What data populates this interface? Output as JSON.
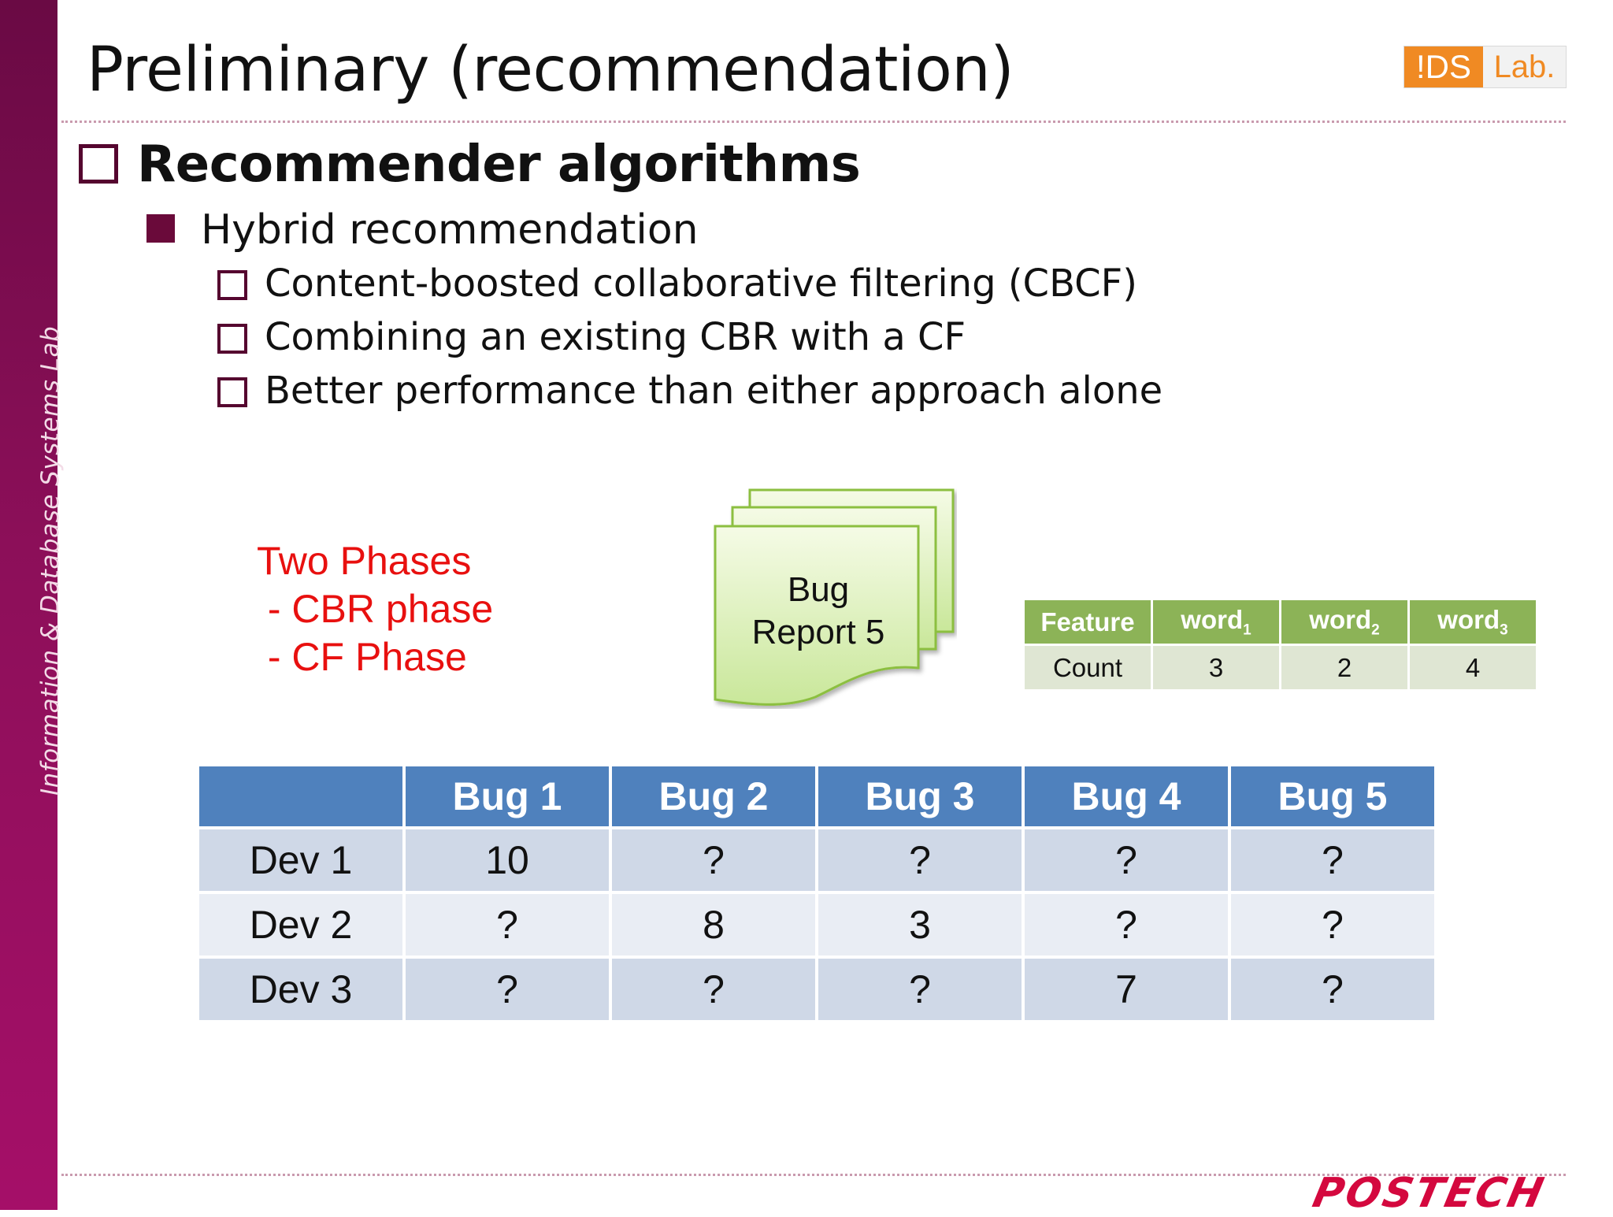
{
  "sidebar": {
    "text": "Information & Database Systems Lab"
  },
  "header": {
    "title": "Preliminary (recommendation)",
    "logo": {
      "part1": "!DS",
      "part2": "Lab."
    }
  },
  "content": {
    "heading": "Recommender algorithms",
    "subheading": "Hybrid recommendation",
    "items": [
      "Content-boosted collaborative filtering (CBCF)",
      "Combining an existing CBR with a CF",
      "Better performance than either approach alone"
    ]
  },
  "phases": {
    "title": "Two Phases",
    "items": [
      " - CBR phase",
      " - CF Phase"
    ]
  },
  "bug_report": {
    "line1": "Bug",
    "line2": "Report 5"
  },
  "feature_table": {
    "header": [
      "Feature",
      "word",
      "word",
      "word"
    ],
    "subscripts": [
      "",
      "1",
      "2",
      "3"
    ],
    "row": [
      "Count",
      "3",
      "2",
      "4"
    ]
  },
  "rating_table": {
    "header": [
      "",
      "Bug 1",
      "Bug 2",
      "Bug 3",
      "Bug 4",
      "Bug 5"
    ],
    "rows": [
      [
        "Dev 1",
        "10",
        "?",
        "?",
        "?",
        "?"
      ],
      [
        "Dev 2",
        "?",
        "8",
        "3",
        "?",
        "?"
      ],
      [
        "Dev 3",
        "?",
        "?",
        "?",
        "7",
        "?"
      ]
    ]
  },
  "footer": {
    "logo": "POSTECH"
  },
  "colors": {
    "sidebar": "#8c0f59",
    "accent_red": "#e8100f",
    "table_header_blue": "#4f81bd",
    "feature_header_green": "#8cb357",
    "logo_orange": "#f08a23",
    "postech_red": "#d4083e"
  }
}
